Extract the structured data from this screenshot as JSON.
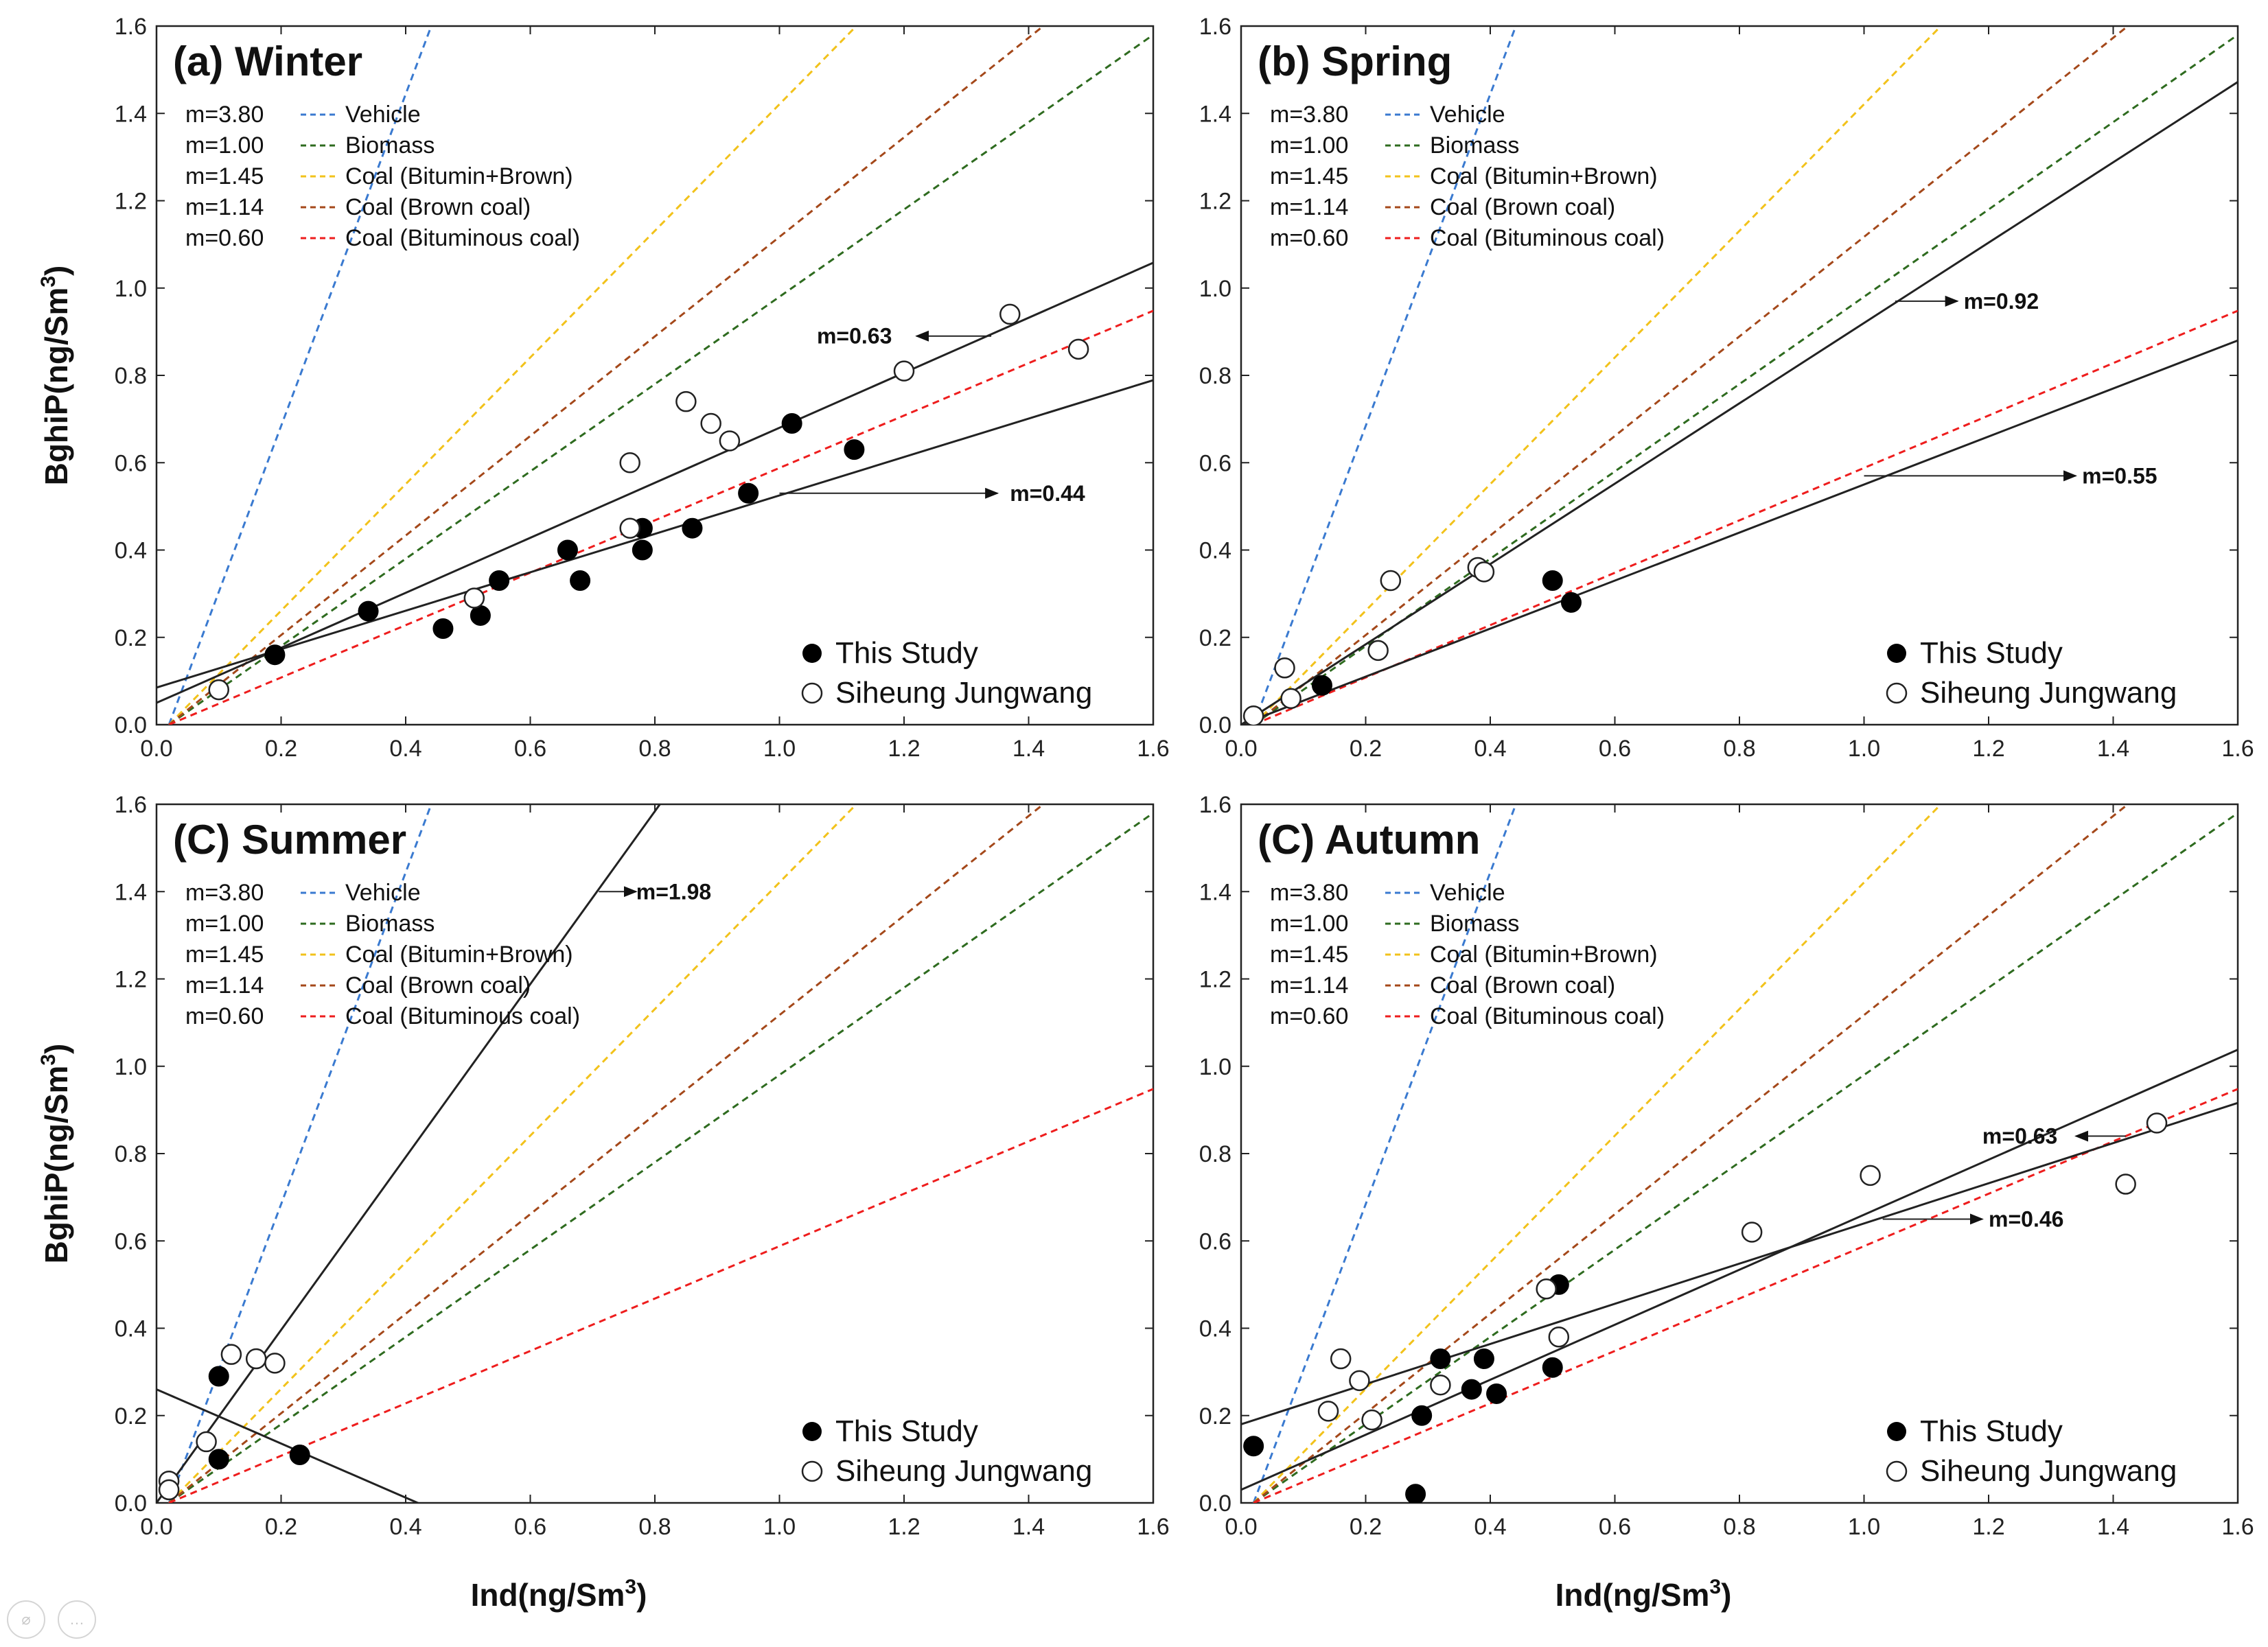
{
  "figure": {
    "x_axis_title": "Ind(ng/Sm",
    "y_axis_title": "BghiP(ng/Sm",
    "unit_superscript": "3",
    "point_legend": [
      "This Study",
      "Siheung Jungwang"
    ]
  },
  "ratio_legend": [
    {
      "m_label": "m=3.80",
      "name": "Vehicle",
      "slope": 3.8,
      "color": "#3a7ad0"
    },
    {
      "m_label": "m=1.00",
      "name": "Biomass",
      "slope": 1.0,
      "color": "#2e6b1f"
    },
    {
      "m_label": "m=1.45",
      "name": "Coal (Bitumin+Brown)",
      "slope": 1.45,
      "color": "#f2c21b"
    },
    {
      "m_label": "m=1.14",
      "name": "Coal (Brown coal)",
      "slope": 1.14,
      "color": "#a4481a"
    },
    {
      "m_label": "m=0.60",
      "name": "Coal (Bituminous coal)",
      "slope": 0.6,
      "color": "#ee1d1d"
    }
  ],
  "chart_data": [
    {
      "type": "scatter",
      "title": "(a) Winter",
      "xlabel": "Ind(ng/Sm3)",
      "ylabel": "BghiP(ng/Sm3)",
      "xlim": [
        0,
        1.6
      ],
      "ylim": [
        0,
        1.6
      ],
      "xticks": [
        "0.0",
        "0.2",
        "0.4",
        "0.6",
        "0.8",
        "1.0",
        "1.2",
        "1.4",
        "1.6"
      ],
      "yticks": [
        "0.0",
        "0.2",
        "0.4",
        "0.6",
        "0.8",
        "1.0",
        "1.2",
        "1.4",
        "1.6"
      ],
      "this_study": [
        [
          0.19,
          0.16
        ],
        [
          0.34,
          0.26
        ],
        [
          0.46,
          0.22
        ],
        [
          0.52,
          0.25
        ],
        [
          0.55,
          0.33
        ],
        [
          0.66,
          0.4
        ],
        [
          0.68,
          0.33
        ],
        [
          0.78,
          0.4
        ],
        [
          0.78,
          0.45
        ],
        [
          0.86,
          0.45
        ],
        [
          0.95,
          0.53
        ],
        [
          1.02,
          0.69
        ],
        [
          1.12,
          0.63
        ]
      ],
      "siheung_jungwang": [
        [
          0.1,
          0.08
        ],
        [
          0.51,
          0.29
        ],
        [
          0.76,
          0.45
        ],
        [
          0.76,
          0.6
        ],
        [
          0.85,
          0.74
        ],
        [
          0.89,
          0.69
        ],
        [
          0.92,
          0.65
        ],
        [
          1.2,
          0.81
        ],
        [
          1.37,
          0.94
        ],
        [
          1.48,
          0.86
        ]
      ],
      "fits": [
        {
          "label": "m=0.63",
          "slope": 0.63,
          "intercept": 0.05,
          "x_range": [
            0,
            1.6
          ]
        },
        {
          "label": "m=0.44",
          "slope": 0.44,
          "intercept": 0.085,
          "x_range": [
            0,
            1.6
          ]
        }
      ],
      "annotations": [
        {
          "text": "m=0.63",
          "tail": [
            1.34,
            0.89
          ],
          "head": [
            1.22,
            0.89
          ],
          "text_at": [
            1.06,
            0.89
          ],
          "anchor": "start"
        },
        {
          "text": "m=0.44",
          "tail": [
            1.0,
            0.53
          ],
          "head": [
            1.35,
            0.53
          ],
          "text_at": [
            1.37,
            0.53
          ],
          "anchor": "start"
        }
      ]
    },
    {
      "type": "scatter",
      "title": "(b) Spring",
      "xlabel": "Ind(ng/Sm3)",
      "ylabel": "BghiP(ng/Sm3)",
      "xlim": [
        0,
        1.6
      ],
      "ylim": [
        0,
        1.6
      ],
      "xticks": [
        "0.0",
        "0.2",
        "0.4",
        "0.6",
        "0.8",
        "1.0",
        "1.2",
        "1.4",
        "1.6"
      ],
      "yticks": [
        "0.0",
        "0.2",
        "0.4",
        "0.6",
        "0.8",
        "1.0",
        "1.2",
        "1.4",
        "1.6"
      ],
      "this_study": [
        [
          0.13,
          0.09
        ],
        [
          0.5,
          0.33
        ],
        [
          0.53,
          0.28
        ]
      ],
      "siheung_jungwang": [
        [
          0.02,
          0.02
        ],
        [
          0.07,
          0.13
        ],
        [
          0.08,
          0.06
        ],
        [
          0.22,
          0.17
        ],
        [
          0.24,
          0.33
        ],
        [
          0.38,
          0.36
        ],
        [
          0.39,
          0.35
        ]
      ],
      "fits": [
        {
          "label": "m=0.92",
          "slope": 0.92,
          "intercept": 0.0,
          "x_range": [
            0,
            1.6
          ]
        },
        {
          "label": "m=0.55",
          "slope": 0.55,
          "intercept": 0.0,
          "x_range": [
            0,
            1.6
          ]
        }
      ],
      "annotations": [
        {
          "text": "m=0.92",
          "tail": [
            1.05,
            0.97
          ],
          "head": [
            1.15,
            0.97
          ],
          "text_at": [
            1.16,
            0.97
          ],
          "anchor": "start"
        },
        {
          "text": "m=0.55",
          "tail": [
            1.0,
            0.57
          ],
          "head": [
            1.34,
            0.57
          ],
          "text_at": [
            1.35,
            0.57
          ],
          "anchor": "start"
        }
      ]
    },
    {
      "type": "scatter",
      "title": "(C) Summer",
      "xlabel": "Ind(ng/Sm3)",
      "ylabel": "BghiP(ng/Sm3)",
      "xlim": [
        0,
        1.6
      ],
      "ylim": [
        0,
        1.6
      ],
      "xticks": [
        "0.0",
        "0.2",
        "0.4",
        "0.6",
        "0.8",
        "1.0",
        "1.2",
        "1.4",
        "1.6"
      ],
      "yticks": [
        "0.0",
        "0.2",
        "0.4",
        "0.6",
        "0.8",
        "1.0",
        "1.2",
        "1.4",
        "1.6"
      ],
      "this_study": [
        [
          0.1,
          0.29
        ],
        [
          0.1,
          0.1
        ],
        [
          0.23,
          0.11
        ]
      ],
      "siheung_jungwang": [
        [
          0.02,
          0.05
        ],
        [
          0.02,
          0.03
        ],
        [
          0.08,
          0.14
        ],
        [
          0.12,
          0.34
        ],
        [
          0.16,
          0.33
        ],
        [
          0.19,
          0.32
        ]
      ],
      "fits": [
        {
          "label": "m=1.98",
          "slope": 1.98,
          "intercept": 0.0,
          "x_range": [
            0,
            1.6
          ]
        },
        {
          "label": "",
          "slope": -0.62,
          "intercept": 0.26,
          "x_range": [
            0,
            0.42
          ]
        }
      ],
      "annotations": [
        {
          "text": "m=1.98",
          "tail": [
            0.71,
            1.4
          ],
          "head": [
            0.77,
            1.4
          ],
          "text_at": [
            0.77,
            1.4
          ],
          "anchor": "start"
        }
      ]
    },
    {
      "type": "scatter",
      "title": "(C) Autumn",
      "xlabel": "Ind(ng/Sm3)",
      "ylabel": "BghiP(ng/Sm3)",
      "xlim": [
        0,
        1.6
      ],
      "ylim": [
        0,
        1.6
      ],
      "xticks": [
        "0.0",
        "0.2",
        "0.4",
        "0.6",
        "0.8",
        "1.0",
        "1.2",
        "1.4",
        "1.6"
      ],
      "yticks": [
        "0.0",
        "0.2",
        "0.4",
        "0.6",
        "0.8",
        "1.0",
        "1.2",
        "1.4",
        "1.6"
      ],
      "this_study": [
        [
          0.02,
          0.13
        ],
        [
          0.28,
          0.02
        ],
        [
          0.29,
          0.2
        ],
        [
          0.32,
          0.33
        ],
        [
          0.37,
          0.26
        ],
        [
          0.39,
          0.33
        ],
        [
          0.41,
          0.25
        ],
        [
          0.5,
          0.31
        ],
        [
          0.51,
          0.5
        ]
      ],
      "siheung_jungwang": [
        [
          0.14,
          0.21
        ],
        [
          0.16,
          0.33
        ],
        [
          0.19,
          0.28
        ],
        [
          0.21,
          0.19
        ],
        [
          0.32,
          0.27
        ],
        [
          0.49,
          0.49
        ],
        [
          0.51,
          0.38
        ],
        [
          0.82,
          0.62
        ],
        [
          1.01,
          0.75
        ],
        [
          1.42,
          0.73
        ],
        [
          1.47,
          0.87
        ]
      ],
      "fits": [
        {
          "label": "m=0.63",
          "slope": 0.63,
          "intercept": 0.03,
          "x_range": [
            0,
            1.6
          ]
        },
        {
          "label": "m=0.46",
          "slope": 0.46,
          "intercept": 0.18,
          "x_range": [
            0,
            1.6
          ]
        }
      ],
      "annotations": [
        {
          "text": "m=0.63",
          "tail": [
            1.42,
            0.84
          ],
          "head": [
            1.34,
            0.84
          ],
          "text_at": [
            1.19,
            0.84
          ],
          "anchor": "start"
        },
        {
          "text": "m=0.46",
          "tail": [
            1.03,
            0.65
          ],
          "head": [
            1.19,
            0.65
          ],
          "text_at": [
            1.2,
            0.65
          ],
          "anchor": "start"
        }
      ]
    }
  ]
}
